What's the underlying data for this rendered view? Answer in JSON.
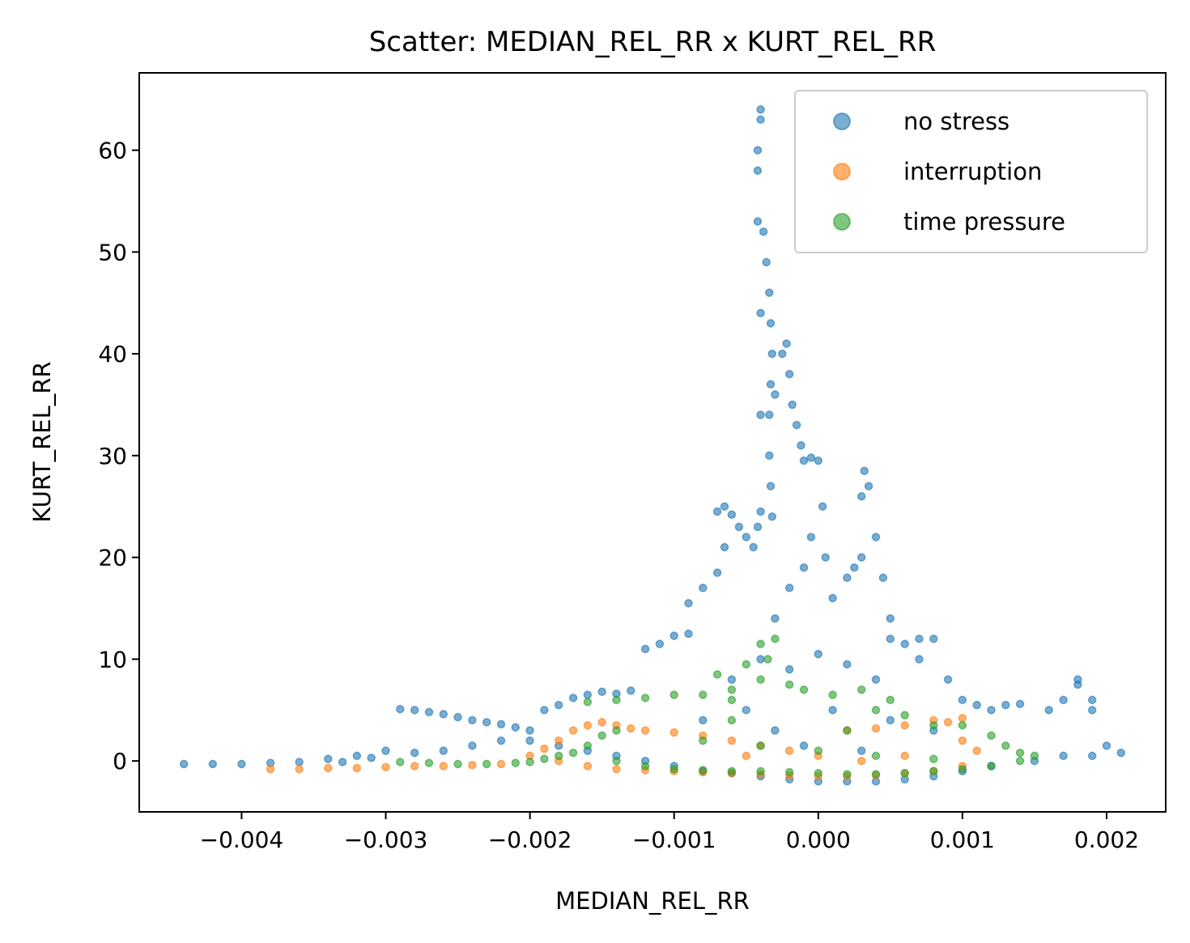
{
  "chart_data": {
    "type": "scatter",
    "title": "Scatter: MEDIAN_REL_RR x KURT_REL_RR",
    "xlabel": "MEDIAN_REL_RR",
    "ylabel": "KURT_REL_RR",
    "xlim": [
      -0.00471,
      0.00241
    ],
    "ylim": [
      -5.0,
      67.6
    ],
    "x_ticks": [
      -0.004,
      -0.003,
      -0.002,
      -0.001,
      0.0,
      0.001,
      0.002
    ],
    "x_tick_labels": [
      "−0.004",
      "−0.003",
      "−0.002",
      "−0.001",
      "0.000",
      "0.001",
      "0.002"
    ],
    "y_ticks": [
      0,
      10,
      20,
      30,
      40,
      50,
      60
    ],
    "y_tick_labels": [
      "0",
      "10",
      "20",
      "30",
      "40",
      "50",
      "60"
    ],
    "grid": false,
    "legend_position": "top-right",
    "series": [
      {
        "name": "no stress",
        "color": "#1f77b4",
        "alpha": 0.6,
        "points": [
          [
            -0.0044,
            -0.3
          ],
          [
            -0.0042,
            -0.3
          ],
          [
            -0.004,
            -0.3
          ],
          [
            -0.0038,
            -0.2
          ],
          [
            -0.0036,
            -0.1
          ],
          [
            -0.0034,
            0.2
          ],
          [
            -0.0032,
            0.5
          ],
          [
            -0.003,
            1.0
          ],
          [
            -0.0029,
            5.1
          ],
          [
            -0.0028,
            5.0
          ],
          [
            -0.0027,
            4.8
          ],
          [
            -0.0026,
            4.6
          ],
          [
            -0.0025,
            4.3
          ],
          [
            -0.0024,
            4.0
          ],
          [
            -0.0023,
            3.8
          ],
          [
            -0.0022,
            3.6
          ],
          [
            -0.0021,
            3.3
          ],
          [
            -0.002,
            3.0
          ],
          [
            -0.0019,
            5.0
          ],
          [
            -0.0018,
            5.5
          ],
          [
            -0.0017,
            6.2
          ],
          [
            -0.0016,
            6.5
          ],
          [
            -0.0015,
            6.8
          ],
          [
            -0.0014,
            6.6
          ],
          [
            -0.0013,
            6.9
          ],
          [
            -0.0012,
            11.0
          ],
          [
            -0.0011,
            11.5
          ],
          [
            -0.001,
            12.3
          ],
          [
            -0.0009,
            12.5
          ],
          [
            -0.0009,
            15.5
          ],
          [
            -0.0008,
            17.0
          ],
          [
            -0.0007,
            18.5
          ],
          [
            -0.00065,
            21.0
          ],
          [
            -0.0007,
            24.5
          ],
          [
            -0.00065,
            25.0
          ],
          [
            -0.0006,
            24.2
          ],
          [
            -0.00055,
            23.0
          ],
          [
            -0.0005,
            22.0
          ],
          [
            -0.00045,
            21.0
          ],
          [
            -0.00042,
            23.0
          ],
          [
            -0.0004,
            24.5
          ],
          [
            -0.0004,
            34.0
          ],
          [
            -0.0004,
            44.0
          ],
          [
            -0.00042,
            53.0
          ],
          [
            -0.00042,
            58.0
          ],
          [
            -0.00042,
            60.0
          ],
          [
            -0.0004,
            63.0
          ],
          [
            -0.0004,
            64.0
          ],
          [
            -0.00038,
            52.0
          ],
          [
            -0.00036,
            49.0
          ],
          [
            -0.00034,
            46.0
          ],
          [
            -0.00033,
            43.0
          ],
          [
            -0.00032,
            40.0
          ],
          [
            -0.00033,
            37.0
          ],
          [
            -0.00034,
            34.0
          ],
          [
            -0.00034,
            30.0
          ],
          [
            -0.00033,
            27.0
          ],
          [
            -0.00032,
            24.0
          ],
          [
            -0.0003,
            36.0
          ],
          [
            -0.00025,
            40.0
          ],
          [
            -0.00022,
            41.0
          ],
          [
            -0.0002,
            38.0
          ],
          [
            -0.00018,
            35.0
          ],
          [
            -0.00015,
            33.0
          ],
          [
            -0.00012,
            31.0
          ],
          [
            -0.0001,
            29.5
          ],
          [
            -5e-05,
            29.8
          ],
          [
            0.0,
            29.5
          ],
          [
            3e-05,
            25.0
          ],
          [
            5e-05,
            20.0
          ],
          [
            -5e-05,
            22.0
          ],
          [
            -0.0001,
            19.0
          ],
          [
            -0.0002,
            17.0
          ],
          [
            -0.0003,
            14.0
          ],
          [
            0.0001,
            16.0
          ],
          [
            0.0002,
            18.0
          ],
          [
            0.0003,
            26.0
          ],
          [
            0.00032,
            28.5
          ],
          [
            0.00035,
            27.0
          ],
          [
            0.0004,
            22.0
          ],
          [
            0.0003,
            20.0
          ],
          [
            0.00025,
            19.0
          ],
          [
            0.00045,
            18.0
          ],
          [
            0.0005,
            14.0
          ],
          [
            0.0005,
            12.0
          ],
          [
            0.0006,
            11.5
          ],
          [
            0.0007,
            12.0
          ],
          [
            0.0008,
            12.0
          ],
          [
            0.0007,
            10.0
          ],
          [
            0.0009,
            8.0
          ],
          [
            0.001,
            6.0
          ],
          [
            0.0011,
            5.5
          ],
          [
            0.0012,
            5.0
          ],
          [
            0.0013,
            5.5
          ],
          [
            0.0014,
            5.6
          ],
          [
            0.0016,
            5.0
          ],
          [
            0.0017,
            6.0
          ],
          [
            0.0018,
            7.5
          ],
          [
            0.0018,
            8.0
          ],
          [
            0.0019,
            6.0
          ],
          [
            0.0019,
            5.0
          ],
          [
            0.002,
            1.5
          ],
          [
            0.0021,
            0.8
          ],
          [
            0.0019,
            0.5
          ],
          [
            0.0017,
            0.5
          ],
          [
            0.0015,
            0.0
          ],
          [
            0.0012,
            -0.5
          ],
          [
            0.001,
            -1.0
          ],
          [
            0.0008,
            -1.5
          ],
          [
            0.0006,
            -1.8
          ],
          [
            0.0004,
            -2.0
          ],
          [
            0.0002,
            -2.0
          ],
          [
            0.0,
            -2.0
          ],
          [
            -0.0002,
            -1.8
          ],
          [
            -0.0004,
            -1.5
          ],
          [
            -0.0006,
            -1.2
          ],
          [
            -0.0008,
            -1.0
          ],
          [
            -0.001,
            -0.5
          ],
          [
            -0.0012,
            0.0
          ],
          [
            -0.0014,
            0.5
          ],
          [
            -0.0016,
            1.0
          ],
          [
            -0.0018,
            1.5
          ],
          [
            -0.002,
            2.0
          ],
          [
            -0.0022,
            2.0
          ],
          [
            -0.0024,
            1.5
          ],
          [
            -0.0026,
            1.0
          ],
          [
            -0.0028,
            0.8
          ],
          [
            -0.0031,
            0.3
          ],
          [
            -0.0033,
            -0.1
          ],
          [
            -0.0006,
            8.0
          ],
          [
            -0.0004,
            10.0
          ],
          [
            -0.0002,
            9.0
          ],
          [
            0.0,
            10.5
          ],
          [
            0.0002,
            9.5
          ],
          [
            0.0004,
            8.0
          ],
          [
            -0.0008,
            4.0
          ],
          [
            -0.0005,
            5.0
          ],
          [
            0.0001,
            5.0
          ],
          [
            0.0005,
            4.0
          ],
          [
            0.0008,
            3.0
          ],
          [
            -0.0003,
            3.0
          ],
          [
            -0.0001,
            1.5
          ],
          [
            0.0003,
            1.0
          ]
        ]
      },
      {
        "name": "interruption",
        "color": "#ff7f0e",
        "alpha": 0.6,
        "points": [
          [
            -0.0038,
            -0.8
          ],
          [
            -0.0036,
            -0.8
          ],
          [
            -0.0034,
            -0.7
          ],
          [
            -0.0032,
            -0.7
          ],
          [
            -0.003,
            -0.6
          ],
          [
            -0.0028,
            -0.5
          ],
          [
            -0.0026,
            -0.5
          ],
          [
            -0.0024,
            -0.4
          ],
          [
            -0.0022,
            -0.3
          ],
          [
            -0.002,
            0.5
          ],
          [
            -0.0019,
            1.2
          ],
          [
            -0.0018,
            2.0
          ],
          [
            -0.0017,
            3.0
          ],
          [
            -0.0016,
            3.5
          ],
          [
            -0.0015,
            3.8
          ],
          [
            -0.0014,
            3.5
          ],
          [
            -0.0013,
            3.2
          ],
          [
            -0.0012,
            3.0
          ],
          [
            -0.001,
            2.8
          ],
          [
            -0.0008,
            2.5
          ],
          [
            -0.0006,
            2.0
          ],
          [
            -0.0004,
            1.5
          ],
          [
            -0.0002,
            1.0
          ],
          [
            0.0,
            0.5
          ],
          [
            0.0002,
            3.0
          ],
          [
            0.0004,
            3.2
          ],
          [
            0.0006,
            3.5
          ],
          [
            0.0008,
            4.0
          ],
          [
            0.001,
            4.2
          ],
          [
            0.0009,
            3.8
          ],
          [
            0.001,
            2.0
          ],
          [
            0.0011,
            1.0
          ],
          [
            0.001,
            -0.5
          ],
          [
            0.0008,
            -1.0
          ],
          [
            0.0006,
            -1.2
          ],
          [
            0.0004,
            -1.4
          ],
          [
            0.0002,
            -1.5
          ],
          [
            0.0,
            -1.5
          ],
          [
            -0.0002,
            -1.4
          ],
          [
            -0.0004,
            -1.3
          ],
          [
            -0.0006,
            -1.2
          ],
          [
            -0.0008,
            -1.1
          ],
          [
            -0.001,
            -1.0
          ],
          [
            -0.0012,
            -0.9
          ],
          [
            -0.0014,
            -0.8
          ],
          [
            -0.0016,
            -0.5
          ],
          [
            -0.0018,
            0.0
          ],
          [
            -0.0005,
            0.5
          ],
          [
            0.0003,
            0.0
          ],
          [
            0.0006,
            0.5
          ]
        ]
      },
      {
        "name": "time pressure",
        "color": "#2ca02c",
        "alpha": 0.6,
        "points": [
          [
            -0.0029,
            -0.1
          ],
          [
            -0.0027,
            -0.2
          ],
          [
            -0.0025,
            -0.3
          ],
          [
            -0.0023,
            -0.3
          ],
          [
            -0.0021,
            -0.2
          ],
          [
            -0.002,
            -0.1
          ],
          [
            -0.0019,
            0.2
          ],
          [
            -0.0018,
            0.5
          ],
          [
            -0.0017,
            0.8
          ],
          [
            -0.0016,
            1.5
          ],
          [
            -0.0015,
            2.5
          ],
          [
            -0.0014,
            3.0
          ],
          [
            -0.0016,
            5.8
          ],
          [
            -0.0014,
            6.0
          ],
          [
            -0.0012,
            6.2
          ],
          [
            -0.001,
            6.5
          ],
          [
            -0.0008,
            6.5
          ],
          [
            -0.0006,
            6.0
          ],
          [
            -0.0004,
            11.5
          ],
          [
            -0.0003,
            12.0
          ],
          [
            -0.00035,
            10.0
          ],
          [
            -0.0005,
            9.5
          ],
          [
            -0.0007,
            8.5
          ],
          [
            -0.0006,
            7.0
          ],
          [
            -0.0004,
            8.0
          ],
          [
            -0.0002,
            7.5
          ],
          [
            -0.0001,
            7.0
          ],
          [
            0.0001,
            6.5
          ],
          [
            0.0003,
            7.0
          ],
          [
            0.0005,
            6.0
          ],
          [
            0.0004,
            5.0
          ],
          [
            0.0006,
            4.5
          ],
          [
            0.0008,
            3.5
          ],
          [
            0.001,
            3.5
          ],
          [
            0.0012,
            2.5
          ],
          [
            0.0013,
            1.5
          ],
          [
            0.0014,
            0.8
          ],
          [
            0.0015,
            0.5
          ],
          [
            0.0014,
            0.0
          ],
          [
            0.0012,
            -0.5
          ],
          [
            0.001,
            -0.8
          ],
          [
            0.0008,
            -1.0
          ],
          [
            0.0006,
            -1.2
          ],
          [
            0.0004,
            -1.3
          ],
          [
            0.0002,
            -1.3
          ],
          [
            0.0,
            -1.2
          ],
          [
            -0.0002,
            -1.1
          ],
          [
            -0.0004,
            -1.0
          ],
          [
            -0.0006,
            -1.0
          ],
          [
            -0.0008,
            -0.9
          ],
          [
            -0.001,
            -0.8
          ],
          [
            -0.0012,
            -0.5
          ],
          [
            -0.0014,
            0.0
          ],
          [
            -0.0008,
            2.0
          ],
          [
            -0.0004,
            1.5
          ],
          [
            0.0,
            1.0
          ],
          [
            0.0004,
            0.5
          ],
          [
            0.0008,
            0.2
          ],
          [
            -0.0006,
            4.0
          ],
          [
            0.0002,
            3.0
          ]
        ]
      }
    ]
  }
}
